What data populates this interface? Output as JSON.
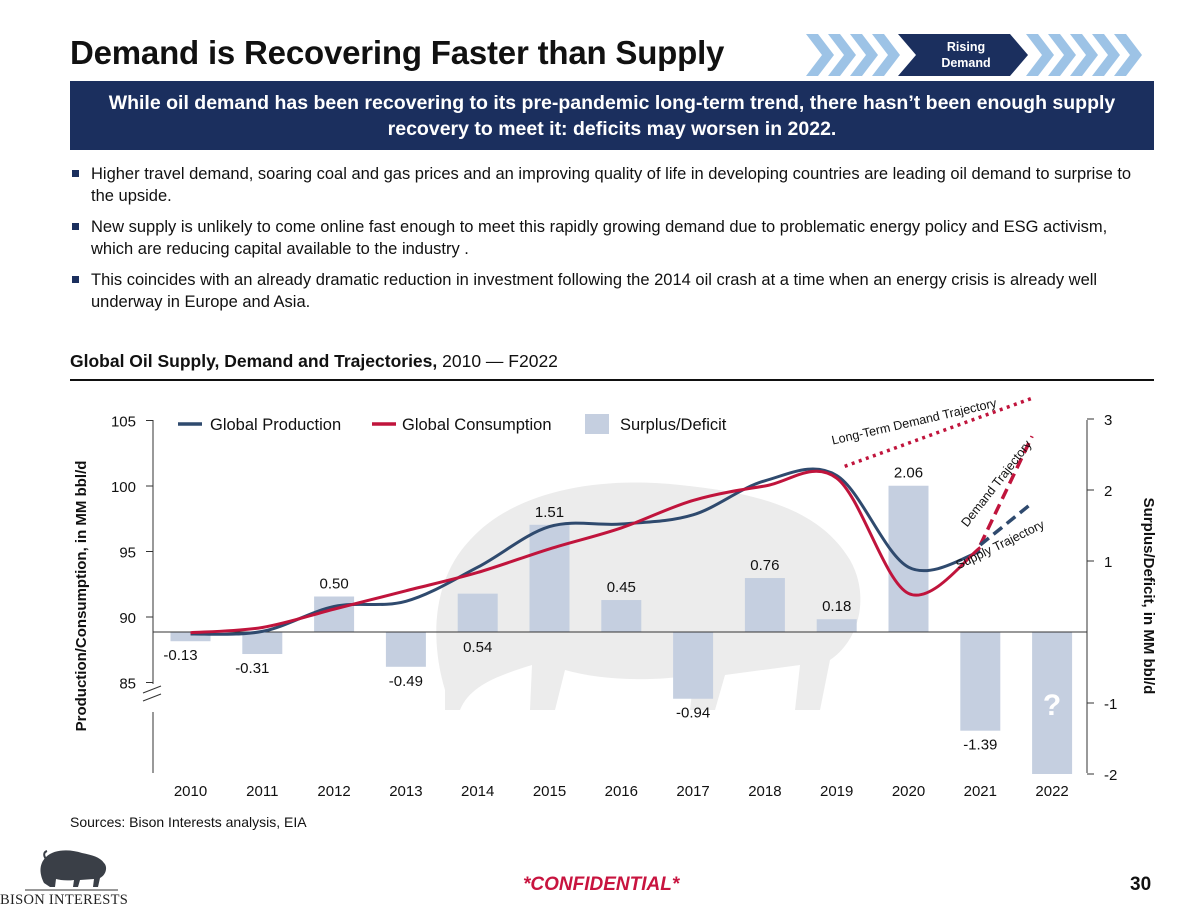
{
  "page": {
    "title": "Demand is Recovering Faster than Supply",
    "stage_label_line1": "Rising",
    "stage_label_line2": "Demand",
    "banner": "While oil demand has been recovering to its pre-pandemic long-term trend, there hasn’t been enough supply recovery to meet it: deficits may worsen in 2022.",
    "bullets": [
      "Higher travel demand, soaring coal and gas prices and an improving quality of life in developing countries are leading oil demand to surprise to the upside.",
      "New supply is unlikely to come online fast enough to meet this rapidly growing demand due to problematic energy policy and ESG activism, which are reducing capital available to the industry .",
      "This coincides with an already dramatic reduction in investment following the 2014 oil crash at a time when an energy crisis is already well underway in Europe and Asia."
    ],
    "chart_title_bold": "Global Oil Supply, Demand and Trajectories,",
    "chart_title_rest": " 2010 — F2022",
    "sources": "Sources: Bison Interests analysis, EIA",
    "logo_text": "BISON INTERESTS",
    "confidential": "*CONFIDENTIAL*",
    "page_number": "30"
  },
  "colors": {
    "navy": "#1b2f5e",
    "production": "#2f4a6e",
    "consumption": "#c0143c",
    "bars": "#c5cfe0",
    "confidential": "#c8143f",
    "chevron_light": "#9dc3e6"
  },
  "chart_data": {
    "type": "bar+line",
    "categories": [
      "2010",
      "2011",
      "2012",
      "2013",
      "2014",
      "2015",
      "2016",
      "2017",
      "2018",
      "2019",
      "2020",
      "2021",
      "2022"
    ],
    "left_axis": {
      "label": "Production/Consumption, in MM bbl/d",
      "ticks": [
        85,
        90,
        95,
        100,
        105
      ],
      "range": [
        85,
        105
      ]
    },
    "right_axis": {
      "label": "Surplus/Deficit, in MM bbl/d",
      "ticks": [
        3,
        2,
        1,
        -1,
        -2
      ],
      "range": [
        -2,
        3
      ]
    },
    "series": [
      {
        "name": "Global Production",
        "kind": "line",
        "axis": "left",
        "values": [
          88.7,
          88.9,
          90.8,
          91.2,
          93.8,
          96.9,
          97.1,
          97.8,
          100.4,
          100.8,
          93.8,
          95.0,
          null
        ]
      },
      {
        "name": "Global Consumption",
        "kind": "line",
        "axis": "left",
        "values": [
          88.8,
          89.2,
          90.6,
          92.0,
          93.4,
          95.2,
          96.8,
          98.9,
          100.0,
          100.6,
          91.8,
          95.3,
          null
        ]
      },
      {
        "name": "Surplus/Deficit",
        "kind": "bar",
        "axis": "right",
        "values": [
          -0.13,
          -0.31,
          0.5,
          -0.49,
          0.54,
          1.51,
          0.45,
          -0.94,
          0.76,
          0.18,
          2.06,
          -1.39,
          null
        ],
        "labels": [
          "-0.13",
          "-0.31",
          "0.50",
          "-0.49",
          "0.54",
          "1.51",
          "0.45",
          "-0.94",
          "0.76",
          "0.18",
          "2.06",
          "-1.39",
          "?"
        ]
      }
    ],
    "trajectories": [
      {
        "name": "Long-Term Demand Trajectory",
        "style": "dotted",
        "axis": "left",
        "x": [
          "2019",
          "2022"
        ],
        "values": [
          101.5,
          106.7
        ]
      },
      {
        "name": "Demand Trajectory",
        "style": "dashed",
        "axis": "left",
        "x": [
          "2021",
          "2022"
        ],
        "values": [
          95.5,
          103.8
        ]
      },
      {
        "name": "Supply Trajectory",
        "style": "dashed",
        "axis": "left",
        "x": [
          "2021",
          "2022"
        ],
        "values": [
          95.5,
          98.7
        ]
      }
    ],
    "legend_position": "top",
    "grid": false
  }
}
